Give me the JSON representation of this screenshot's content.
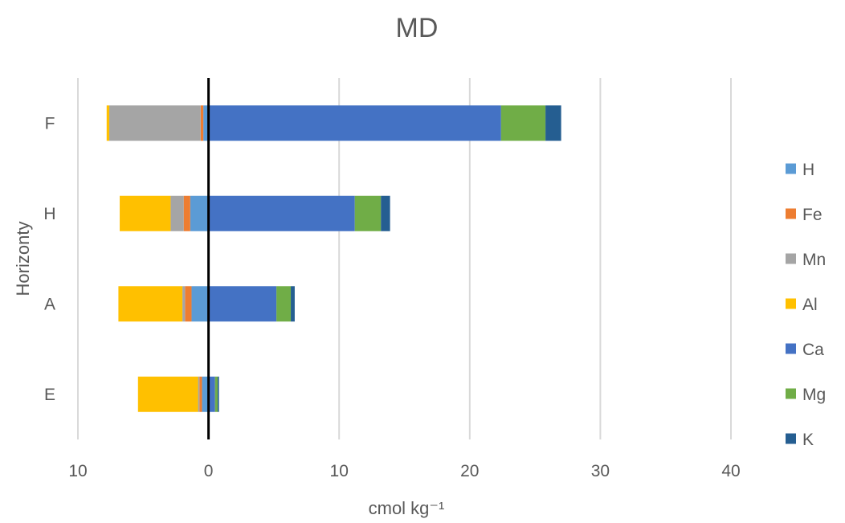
{
  "chart_data": {
    "type": "bar",
    "orientation": "horizontal",
    "stacked": "diverging",
    "title": "MD",
    "xlabel": "cmol kg⁻¹",
    "ylabel": "Horizonty",
    "xlim": [
      -10,
      40
    ],
    "x_ticks": [
      -10,
      0,
      10,
      20,
      30,
      40
    ],
    "x_tick_labels": [
      "10",
      "0",
      "10",
      "20",
      "30",
      "40"
    ],
    "grid": true,
    "legend_position": "right",
    "categories": [
      "E",
      "A",
      "H",
      "F"
    ],
    "series": [
      {
        "name": "H",
        "color": "#5B9BD5",
        "values": [
          -0.5,
          -1.3,
          -1.4,
          -0.4
        ]
      },
      {
        "name": "Fe",
        "color": "#ED7D31",
        "values": [
          -0.2,
          -0.5,
          -0.5,
          -0.2
        ]
      },
      {
        "name": "Mn",
        "color": "#A5A5A5",
        "values": [
          -0.1,
          -0.2,
          -1.0,
          -7.0
        ]
      },
      {
        "name": "Al",
        "color": "#FFC000",
        "values": [
          -4.6,
          -4.9,
          -3.9,
          -0.2
        ]
      },
      {
        "name": "Ca",
        "color": "#4472C4",
        "values": [
          0.5,
          5.2,
          11.2,
          22.4
        ]
      },
      {
        "name": "Mg",
        "color": "#70AD47",
        "values": [
          0.2,
          1.1,
          2.0,
          3.4
        ]
      },
      {
        "name": "K",
        "color": "#255E91",
        "values": [
          0.1,
          0.3,
          0.7,
          1.2
        ]
      }
    ]
  }
}
